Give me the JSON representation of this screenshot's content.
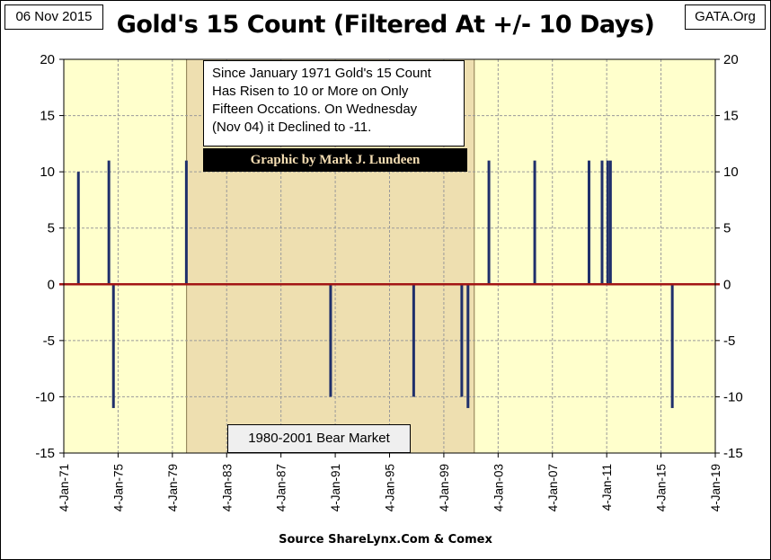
{
  "header": {
    "date": "06 Nov 2015",
    "site": "GATA.Org"
  },
  "footer": {
    "source": "Source ShareLynx.Com & Comex"
  },
  "chart_data": {
    "type": "bar",
    "title": "Gold's 15 Count (Filtered At +/- 10 Days)",
    "xlabel": "",
    "ylabel": "",
    "ylim": [
      -15,
      20
    ],
    "yticks": [
      "20",
      "15",
      "10",
      "5",
      "0",
      "-5",
      "-10",
      "-15"
    ],
    "xlim": [
      "1971-01-04",
      "2019-01-04"
    ],
    "xticks": [
      "4-Jan-71",
      "4-Jan-75",
      "4-Jan-79",
      "4-Jan-83",
      "4-Jan-87",
      "4-Jan-91",
      "4-Jan-95",
      "4-Jan-99",
      "4-Jan-03",
      "4-Jan-07",
      "4-Jan-11",
      "4-Jan-15",
      "4-Jan-19"
    ],
    "grid": true,
    "colors": {
      "plot_background": "#ffffcc",
      "bear_market_shading": "#eedfb0",
      "bars": "#1f2f6b",
      "zero_line": "#a31515",
      "gridlines": "#9a9a9a"
    },
    "points": [
      {
        "date": "1972-02-01",
        "value": 10
      },
      {
        "date": "1974-05-01",
        "value": 11
      },
      {
        "date": "1974-09-01",
        "value": -11
      },
      {
        "date": "1980-01-15",
        "value": 11
      },
      {
        "date": "1990-09-01",
        "value": -10
      },
      {
        "date": "1996-10-15",
        "value": -10
      },
      {
        "date": "2000-05-01",
        "value": -10
      },
      {
        "date": "2000-10-15",
        "value": -11
      },
      {
        "date": "2002-05-01",
        "value": 11
      },
      {
        "date": "2005-09-15",
        "value": 11
      },
      {
        "date": "2009-09-15",
        "value": 11
      },
      {
        "date": "2010-09-01",
        "value": 11
      },
      {
        "date": "2011-02-01",
        "value": 11
      },
      {
        "date": "2011-04-15",
        "value": 11
      },
      {
        "date": "2015-11-04",
        "value": -11
      }
    ],
    "shaded_region": {
      "start": "1980-01-21",
      "end": "2001-04-02",
      "label": "1980-2001 Bear Market"
    },
    "annotations": {
      "note_lines": [
        "Since January 1971 Gold's 15 Count",
        "Has Risen to 10 or More on Only",
        "Fifteen Occations.  On Wednesday",
        "(Nov 04) it Declined to -11."
      ],
      "credit": "Graphic by Mark J. Lundeen"
    }
  }
}
